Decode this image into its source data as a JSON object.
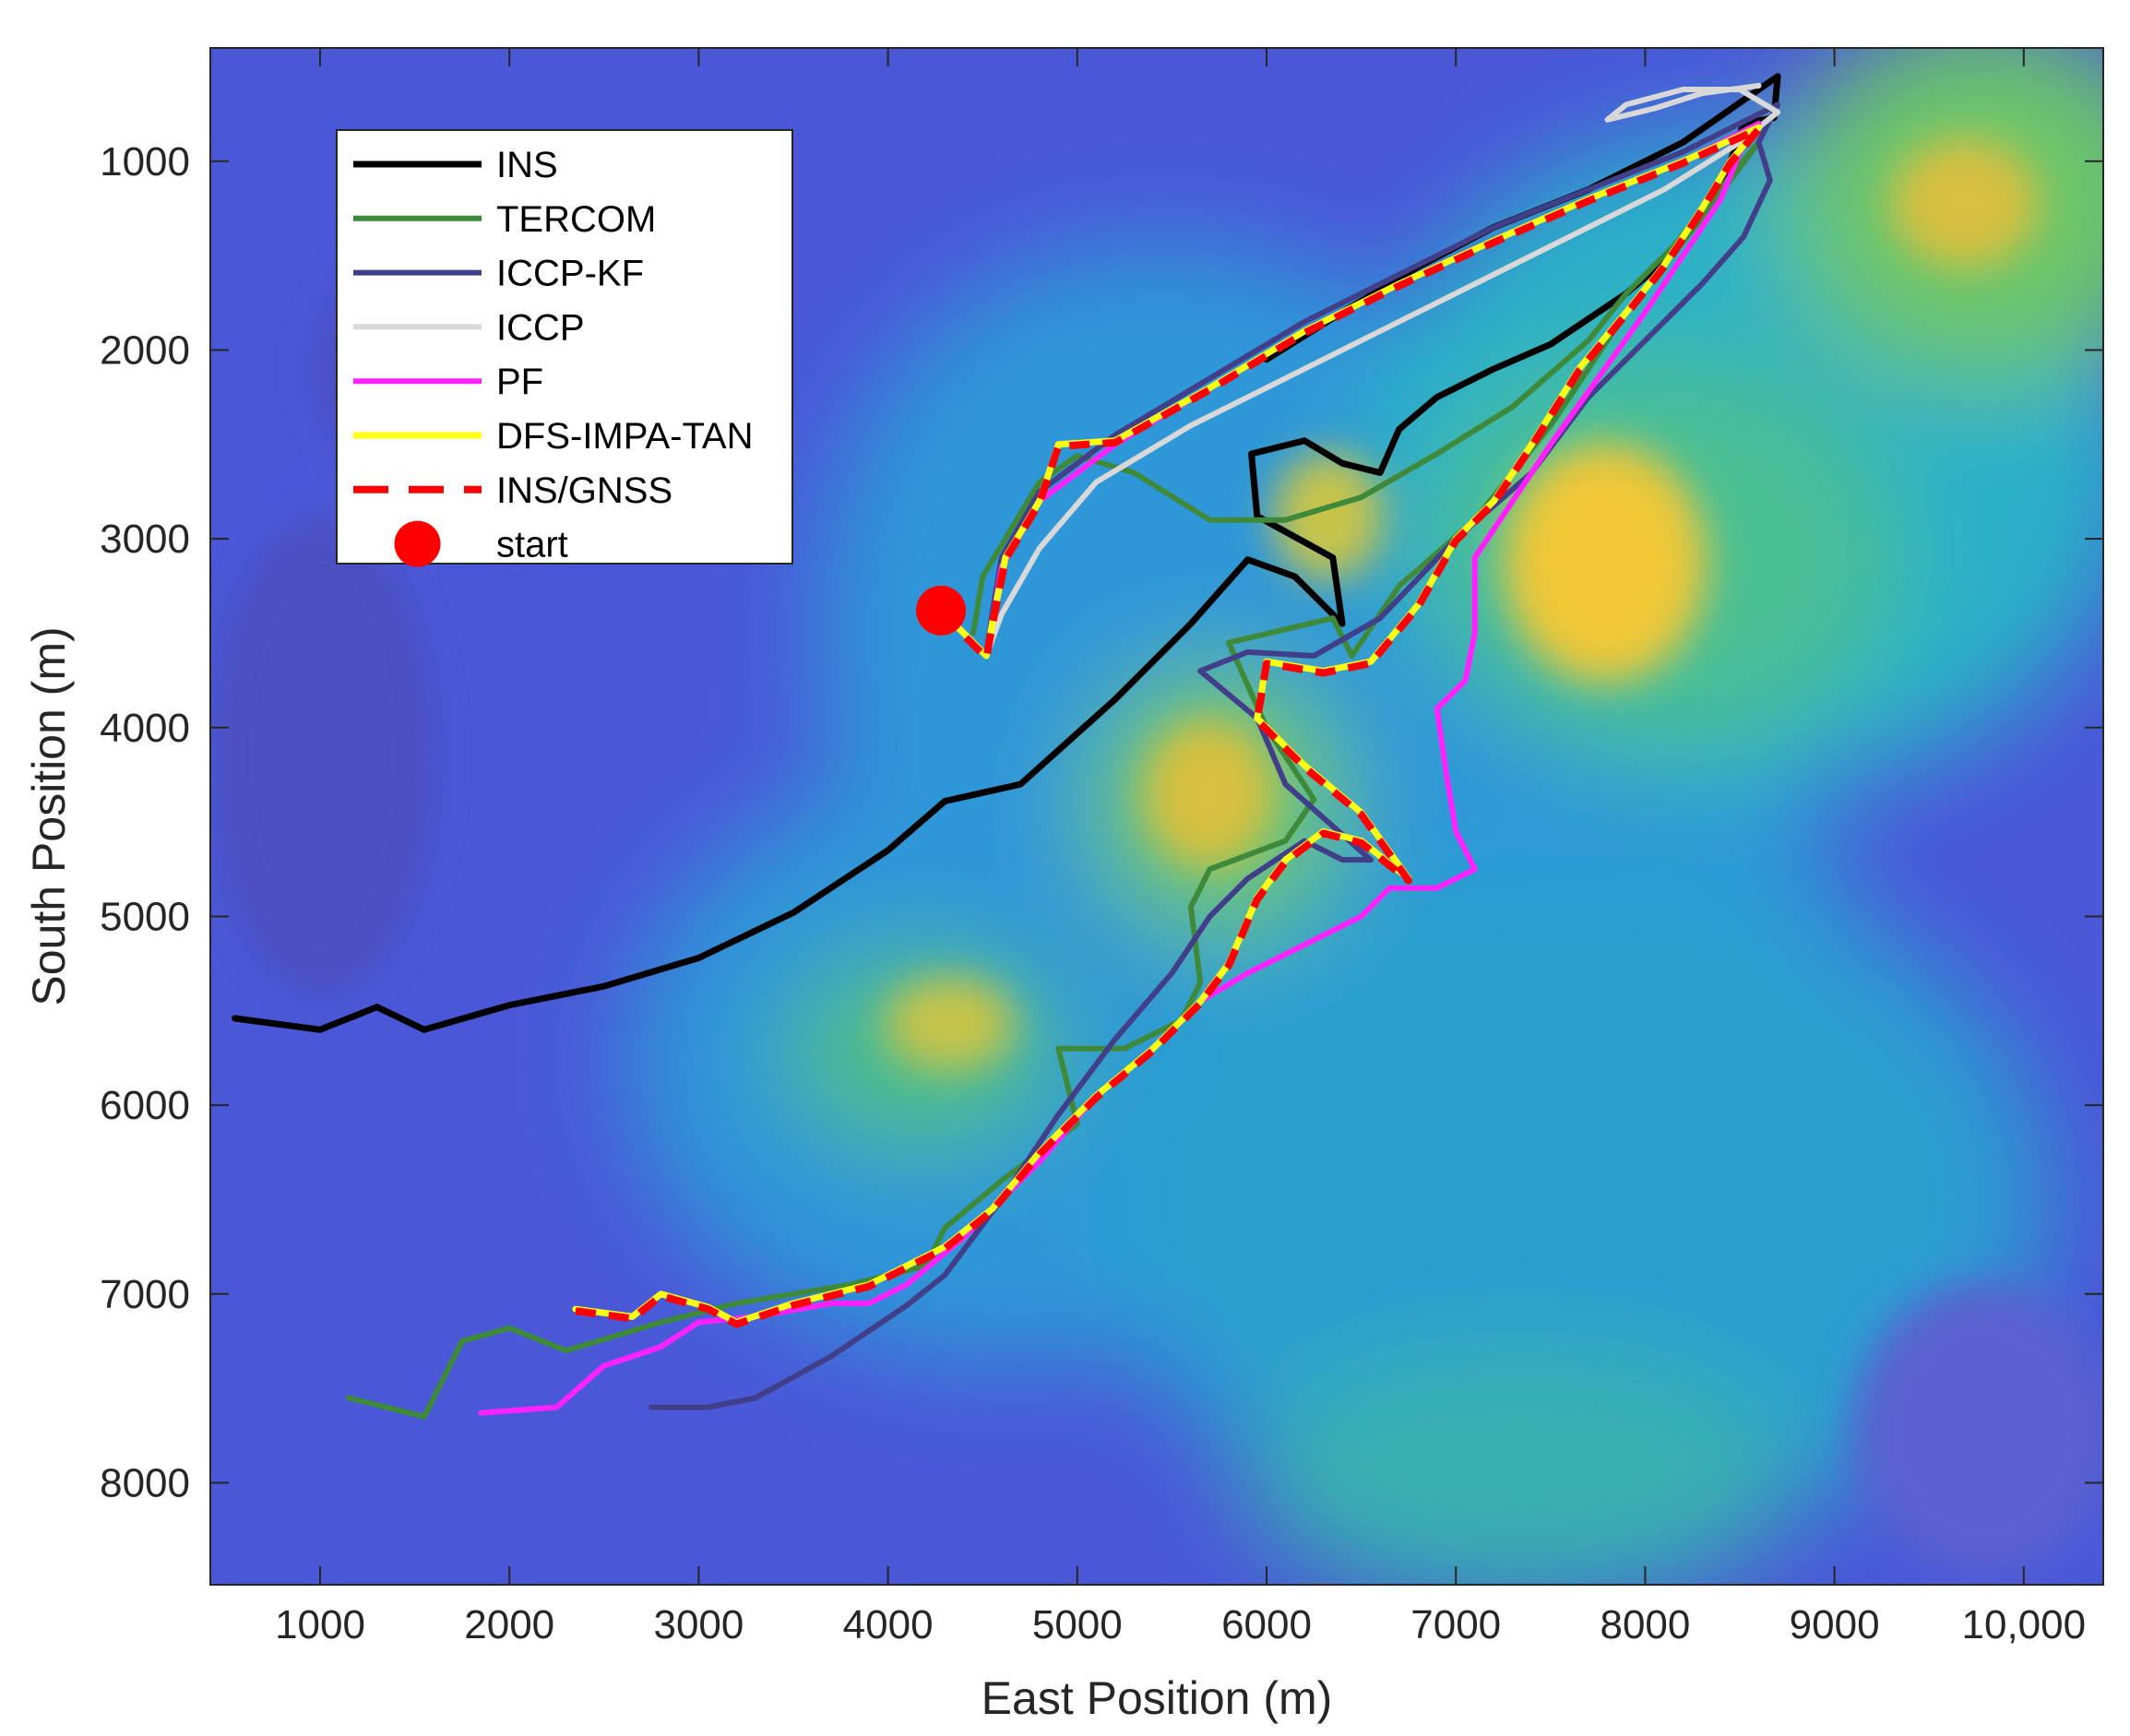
{
  "chart_data": {
    "type": "line",
    "title": "",
    "xlabel": "East Position (m)",
    "ylabel": "South Position (m)",
    "xlim": [
      420,
      10420
    ],
    "ylim": [
      400,
      8540
    ],
    "y_reversed": true,
    "grid": false,
    "legend_position": "top-left",
    "background": "terrain elevation map (parula colormap)",
    "x_ticks": [
      1000,
      2000,
      3000,
      4000,
      5000,
      6000,
      7000,
      8000,
      9000,
      10000
    ],
    "x_tick_labels": [
      "1000",
      "2000",
      "3000",
      "4000",
      "5000",
      "6000",
      "7000",
      "8000",
      "9000",
      "10,000"
    ],
    "y_ticks": [
      1000,
      2000,
      3000,
      4000,
      5000,
      6000,
      7000,
      8000
    ],
    "y_tick_labels": [
      "1000",
      "2000",
      "3000",
      "4000",
      "5000",
      "6000",
      "7000",
      "8000"
    ],
    "series": [
      {
        "name": "INS",
        "color": "#000000",
        "style": "solid",
        "width": 7,
        "points": [
          [
            550,
            5540
          ],
          [
            1000,
            5600
          ],
          [
            1300,
            5480
          ],
          [
            1550,
            5600
          ],
          [
            2000,
            5470
          ],
          [
            2500,
            5370
          ],
          [
            3000,
            5220
          ],
          [
            3500,
            4980
          ],
          [
            4000,
            4650
          ],
          [
            4300,
            4390
          ],
          [
            4700,
            4300
          ],
          [
            5200,
            3850
          ],
          [
            5600,
            3450
          ],
          [
            5900,
            3110
          ],
          [
            6150,
            3200
          ],
          [
            6400,
            3450
          ],
          [
            6350,
            3100
          ],
          [
            5950,
            2880
          ],
          [
            5920,
            2550
          ],
          [
            6200,
            2480
          ],
          [
            6400,
            2600
          ],
          [
            6600,
            2650
          ],
          [
            6700,
            2420
          ],
          [
            6900,
            2250
          ],
          [
            7200,
            2100
          ],
          [
            7500,
            1970
          ],
          [
            7900,
            1700
          ],
          [
            8100,
            1530
          ],
          [
            8400,
            1150
          ],
          [
            8520,
            800
          ],
          [
            8680,
            770
          ],
          [
            8700,
            550
          ],
          [
            8200,
            900
          ],
          [
            7700,
            1150
          ],
          [
            7200,
            1350
          ],
          [
            6800,
            1560
          ],
          [
            6400,
            1800
          ],
          [
            6000,
            2050
          ]
        ]
      },
      {
        "name": "TERCOM",
        "color": "#3e8a3a",
        "style": "solid",
        "width": 6,
        "points": [
          [
            1150,
            7550
          ],
          [
            1550,
            7650
          ],
          [
            1750,
            7250
          ],
          [
            2000,
            7180
          ],
          [
            2300,
            7300
          ],
          [
            2800,
            7150
          ],
          [
            3200,
            7050
          ],
          [
            3800,
            6950
          ],
          [
            4200,
            6850
          ],
          [
            4300,
            6650
          ],
          [
            4600,
            6400
          ],
          [
            5000,
            6100
          ],
          [
            4900,
            5700
          ],
          [
            5250,
            5700
          ],
          [
            5550,
            5550
          ],
          [
            5650,
            5350
          ],
          [
            5600,
            4950
          ],
          [
            5700,
            4750
          ],
          [
            6100,
            4600
          ],
          [
            6250,
            4380
          ],
          [
            6000,
            4000
          ],
          [
            5800,
            3550
          ],
          [
            6350,
            3420
          ],
          [
            6450,
            3620
          ],
          [
            6700,
            3250
          ],
          [
            7100,
            2900
          ],
          [
            7300,
            2650
          ],
          [
            7500,
            2400
          ],
          [
            7700,
            2100
          ],
          [
            7900,
            1800
          ],
          [
            8100,
            1550
          ],
          [
            8300,
            1300
          ],
          [
            8450,
            1100
          ],
          [
            8600,
            900
          ],
          [
            8350,
            1200
          ],
          [
            8150,
            1450
          ],
          [
            7900,
            1700
          ],
          [
            7700,
            1950
          ],
          [
            7300,
            2300
          ],
          [
            6900,
            2550
          ],
          [
            6500,
            2780
          ],
          [
            6100,
            2900
          ],
          [
            5700,
            2900
          ],
          [
            5300,
            2650
          ],
          [
            5000,
            2560
          ],
          [
            4800,
            2700
          ],
          [
            4650,
            2950
          ],
          [
            4500,
            3200
          ],
          [
            4450,
            3500
          ]
        ]
      },
      {
        "name": "ICCP-KF",
        "color": "#423f8a",
        "style": "solid",
        "width": 6,
        "points": [
          [
            2750,
            7600
          ],
          [
            3050,
            7600
          ],
          [
            3300,
            7550
          ],
          [
            3700,
            7330
          ],
          [
            4100,
            7060
          ],
          [
            4300,
            6900
          ],
          [
            4600,
            6500
          ],
          [
            4900,
            6050
          ],
          [
            5200,
            5650
          ],
          [
            5500,
            5300
          ],
          [
            5700,
            5000
          ],
          [
            5900,
            4800
          ],
          [
            6200,
            4600
          ],
          [
            6400,
            4700
          ],
          [
            6550,
            4700
          ],
          [
            6100,
            4300
          ],
          [
            5950,
            3950
          ],
          [
            5650,
            3700
          ],
          [
            5900,
            3600
          ],
          [
            6250,
            3620
          ],
          [
            6600,
            3420
          ],
          [
            7000,
            3000
          ],
          [
            7400,
            2650
          ],
          [
            7700,
            2250
          ],
          [
            8000,
            1950
          ],
          [
            8300,
            1650
          ],
          [
            8520,
            1400
          ],
          [
            8660,
            1100
          ],
          [
            8600,
            900
          ],
          [
            8700,
            700
          ],
          [
            8200,
            950
          ],
          [
            7700,
            1150
          ],
          [
            7200,
            1350
          ],
          [
            6700,
            1600
          ],
          [
            6200,
            1850
          ],
          [
            5700,
            2150
          ],
          [
            5200,
            2450
          ],
          [
            4800,
            2750
          ],
          [
            4600,
            3100
          ],
          [
            4550,
            3400
          ],
          [
            4520,
            3600
          ]
        ]
      },
      {
        "name": "ICCP",
        "color": "#d8d8d8",
        "style": "solid",
        "width": 6,
        "points": [
          [
            4520,
            3620
          ],
          [
            4600,
            3400
          ],
          [
            4800,
            3050
          ],
          [
            5100,
            2700
          ],
          [
            5600,
            2400
          ],
          [
            6100,
            2150
          ],
          [
            6600,
            1900
          ],
          [
            7100,
            1650
          ],
          [
            7600,
            1400
          ],
          [
            8100,
            1150
          ],
          [
            8500,
            900
          ],
          [
            8700,
            740
          ],
          [
            8500,
            620
          ],
          [
            8200,
            620
          ],
          [
            7900,
            700
          ],
          [
            7800,
            780
          ],
          [
            8050,
            720
          ],
          [
            8300,
            640
          ],
          [
            8600,
            600
          ]
        ]
      },
      {
        "name": "PF",
        "color": "#ff22ff",
        "style": "solid",
        "width": 6,
        "points": [
          [
            1850,
            7630
          ],
          [
            2250,
            7600
          ],
          [
            2500,
            7380
          ],
          [
            2800,
            7280
          ],
          [
            3000,
            7150
          ],
          [
            3300,
            7120
          ],
          [
            3700,
            7050
          ],
          [
            3900,
            7050
          ],
          [
            4100,
            6950
          ],
          [
            4400,
            6700
          ],
          [
            4800,
            6300
          ],
          [
            5100,
            5950
          ],
          [
            5400,
            5700
          ],
          [
            5650,
            5450
          ],
          [
            5900,
            5300
          ],
          [
            6200,
            5150
          ],
          [
            6500,
            5000
          ],
          [
            6650,
            4850
          ],
          [
            6900,
            4850
          ],
          [
            7100,
            4750
          ],
          [
            7000,
            4550
          ],
          [
            6950,
            4250
          ],
          [
            6900,
            3900
          ],
          [
            7050,
            3750
          ],
          [
            7100,
            3500
          ],
          [
            7100,
            3100
          ],
          [
            7300,
            2800
          ],
          [
            7500,
            2500
          ],
          [
            7750,
            2150
          ],
          [
            8000,
            1800
          ],
          [
            8200,
            1500
          ],
          [
            8400,
            1200
          ],
          [
            8500,
            950
          ],
          [
            8600,
            800
          ],
          [
            8200,
            1000
          ],
          [
            7700,
            1200
          ],
          [
            7200,
            1420
          ],
          [
            6700,
            1650
          ],
          [
            6200,
            1900
          ],
          [
            5700,
            2200
          ],
          [
            5200,
            2500
          ],
          [
            4800,
            2800
          ],
          [
            4600,
            3150
          ],
          [
            4550,
            3450
          ],
          [
            4520,
            3620
          ]
        ]
      },
      {
        "name": "DFS-IMPA-TAN",
        "color": "#ffff14",
        "style": "solid",
        "width": 7,
        "points": [
          [
            2350,
            7080
          ],
          [
            2650,
            7120
          ],
          [
            2800,
            7000
          ],
          [
            3050,
            7070
          ],
          [
            3200,
            7150
          ],
          [
            3500,
            7050
          ],
          [
            3900,
            6950
          ],
          [
            4300,
            6750
          ],
          [
            4550,
            6550
          ],
          [
            4800,
            6250
          ],
          [
            5100,
            5950
          ],
          [
            5400,
            5700
          ],
          [
            5650,
            5450
          ],
          [
            5800,
            5250
          ],
          [
            5950,
            4900
          ],
          [
            6100,
            4700
          ],
          [
            6300,
            4550
          ],
          [
            6500,
            4600
          ],
          [
            6750,
            4800
          ],
          [
            6500,
            4450
          ],
          [
            6200,
            4200
          ],
          [
            5950,
            3950
          ],
          [
            6000,
            3650
          ],
          [
            6300,
            3700
          ],
          [
            6550,
            3650
          ],
          [
            6800,
            3350
          ],
          [
            7000,
            3000
          ],
          [
            7200,
            2800
          ],
          [
            7400,
            2500
          ],
          [
            7650,
            2100
          ],
          [
            7900,
            1800
          ],
          [
            8100,
            1550
          ],
          [
            8300,
            1250
          ],
          [
            8450,
            1000
          ],
          [
            8600,
            820
          ],
          [
            8200,
            1000
          ],
          [
            7700,
            1200
          ],
          [
            7200,
            1420
          ],
          [
            6700,
            1650
          ],
          [
            6200,
            1900
          ],
          [
            5700,
            2200
          ],
          [
            5200,
            2480
          ],
          [
            4900,
            2500
          ],
          [
            4800,
            2800
          ],
          [
            4620,
            3100
          ],
          [
            4550,
            3450
          ],
          [
            4520,
            3620
          ],
          [
            4300,
            3400
          ]
        ]
      },
      {
        "name": "INS/GNSS",
        "color": "#ff0000",
        "style": "dashed",
        "width": 8,
        "points": [
          [
            2350,
            7090
          ],
          [
            2650,
            7130
          ],
          [
            2800,
            7010
          ],
          [
            3050,
            7080
          ],
          [
            3200,
            7160
          ],
          [
            3500,
            7060
          ],
          [
            3900,
            6960
          ],
          [
            4300,
            6760
          ],
          [
            4550,
            6560
          ],
          [
            4800,
            6260
          ],
          [
            5100,
            5960
          ],
          [
            5400,
            5710
          ],
          [
            5650,
            5460
          ],
          [
            5800,
            5260
          ],
          [
            5950,
            4910
          ],
          [
            6100,
            4710
          ],
          [
            6300,
            4560
          ],
          [
            6500,
            4610
          ],
          [
            6750,
            4810
          ],
          [
            6500,
            4460
          ],
          [
            6200,
            4210
          ],
          [
            5950,
            3960
          ],
          [
            6000,
            3660
          ],
          [
            6300,
            3710
          ],
          [
            6550,
            3660
          ],
          [
            6800,
            3360
          ],
          [
            7000,
            3010
          ],
          [
            7200,
            2810
          ],
          [
            7400,
            2510
          ],
          [
            7650,
            2110
          ],
          [
            7900,
            1810
          ],
          [
            8100,
            1560
          ],
          [
            8300,
            1260
          ],
          [
            8450,
            1010
          ],
          [
            8600,
            830
          ],
          [
            8200,
            1010
          ],
          [
            7700,
            1210
          ],
          [
            7200,
            1430
          ],
          [
            6700,
            1660
          ],
          [
            6200,
            1910
          ],
          [
            5700,
            2210
          ],
          [
            5200,
            2490
          ],
          [
            4900,
            2510
          ],
          [
            4800,
            2810
          ],
          [
            4620,
            3110
          ],
          [
            4550,
            3460
          ],
          [
            4520,
            3630
          ],
          [
            4300,
            3410
          ]
        ]
      }
    ],
    "markers": [
      {
        "name": "start",
        "color": "#ff0000",
        "x": 4280,
        "y": 3380
      }
    ],
    "legend": [
      "INS",
      "TERCOM",
      "ICCP-KF",
      "ICCP",
      "PF",
      "DFS-IMPA-TAN",
      "INS/GNSS",
      "start"
    ]
  }
}
